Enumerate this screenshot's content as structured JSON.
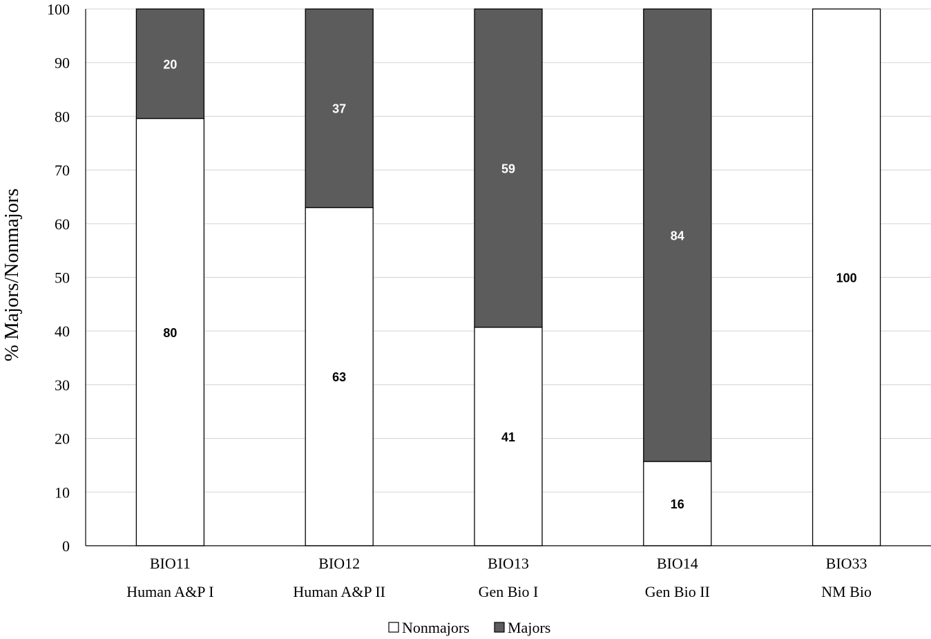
{
  "chart_data": {
    "type": "bar",
    "stacked": true,
    "percent_stacked": true,
    "categories": [
      [
        "BIO11",
        "Human A&P I"
      ],
      [
        "BIO12",
        "Human A&P II"
      ],
      [
        "BIO13",
        "Gen Bio I"
      ],
      [
        "BIO14",
        "Gen Bio II"
      ],
      [
        "BIO33",
        "NM Bio"
      ]
    ],
    "series": [
      {
        "name": "Nonmajors",
        "color": "#ffffff",
        "label_color": "#000000",
        "values": [
          79.6,
          63,
          40.7,
          15.7,
          100
        ],
        "labels": [
          "80",
          "63",
          "41",
          "16",
          "100"
        ]
      },
      {
        "name": "Majors",
        "color": "#5c5c5c",
        "label_color": "#ffffff",
        "values": [
          20.4,
          37,
          59.3,
          84.3,
          0
        ],
        "labels": [
          "20",
          "37",
          "59",
          "84",
          ""
        ]
      }
    ],
    "title": "",
    "xlabel": "",
    "ylabel": "% Majors/Nonmajors",
    "ylim": [
      0,
      100
    ],
    "yticks": [
      0,
      10,
      20,
      30,
      40,
      50,
      60,
      70,
      80,
      90,
      100
    ],
    "grid": true,
    "legend": "bottom"
  }
}
